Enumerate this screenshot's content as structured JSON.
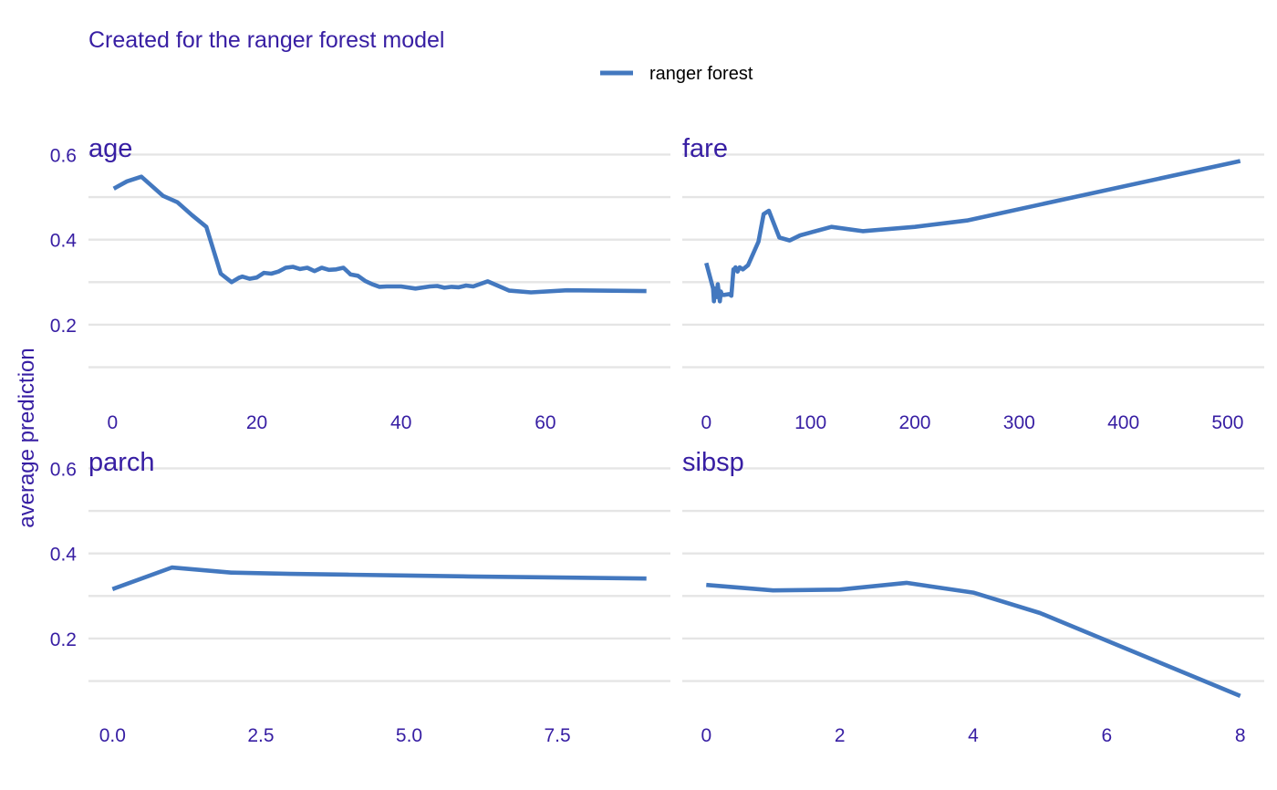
{
  "subtitle": "Created for the ranger forest model",
  "ylabel": "average prediction",
  "chart_data": {
    "type": "line",
    "subtitle": "Created for the ranger forest model",
    "ylabel": "average prediction",
    "legend": {
      "position": "top",
      "entries": [
        {
          "label": "ranger forest",
          "color": "#4378bf"
        }
      ]
    },
    "grid": true,
    "shared_y": {
      "range": [
        0.1,
        0.6
      ],
      "ticks": [
        0.2,
        0.4,
        0.6
      ],
      "tick_labels": [
        "0.2",
        "0.4",
        "0.6"
      ]
    },
    "panels": [
      {
        "title": "age",
        "xlim": [
          0,
          74
        ],
        "x_ticks": [
          0,
          20,
          40,
          60
        ],
        "x_tick_labels": [
          "0",
          "20",
          "40",
          "60"
        ],
        "series": [
          {
            "name": "ranger forest",
            "color": "#4378bf",
            "x": [
              0.17,
              2,
              4,
              7,
              9,
              11,
              13,
              15,
              16.5,
              17.5,
              18,
              19,
              20,
              21,
              22,
              23,
              24,
              25,
              26,
              27,
              28,
              29,
              30,
              31,
              32,
              33,
              34,
              35,
              36,
              37,
              38,
              40,
              42,
              44,
              45,
              46,
              47,
              48,
              49,
              50,
              52,
              55,
              58,
              63,
              74
            ],
            "y": [
              0.52,
              0.537,
              0.548,
              0.503,
              0.488,
              0.458,
              0.43,
              0.32,
              0.3,
              0.31,
              0.313,
              0.308,
              0.311,
              0.322,
              0.32,
              0.325,
              0.334,
              0.336,
              0.331,
              0.334,
              0.326,
              0.334,
              0.329,
              0.33,
              0.334,
              0.318,
              0.315,
              0.303,
              0.295,
              0.289,
              0.29,
              0.29,
              0.285,
              0.29,
              0.291,
              0.287,
              0.289,
              0.288,
              0.292,
              0.29,
              0.302,
              0.28,
              0.276,
              0.281,
              0.279
            ]
          }
        ]
      },
      {
        "title": "fare",
        "xlim": [
          0,
          512
        ],
        "x_ticks": [
          0,
          100,
          200,
          300,
          400,
          500
        ],
        "x_tick_labels": [
          "0",
          "100",
          "200",
          "300",
          "400",
          "500"
        ],
        "series": [
          {
            "name": "ranger forest",
            "color": "#4378bf",
            "x": [
              0,
              6.5,
              7.3,
              8,
              10,
              11,
              13,
              14,
              15,
              17,
              22,
              24,
              26,
              27,
              28,
              30,
              32,
              35,
              40,
              50,
              55,
              60,
              70,
              80,
              90,
              120,
              150,
              200,
              250,
              512
            ],
            "y": [
              0.345,
              0.285,
              0.255,
              0.285,
              0.265,
              0.295,
              0.255,
              0.278,
              0.27,
              0.27,
              0.272,
              0.268,
              0.33,
              0.33,
              0.335,
              0.325,
              0.335,
              0.33,
              0.34,
              0.395,
              0.46,
              0.468,
              0.405,
              0.398,
              0.41,
              0.43,
              0.42,
              0.43,
              0.445,
              0.585
            ]
          }
        ]
      },
      {
        "title": "parch",
        "xlim": [
          0,
          9
        ],
        "x_ticks": [
          0,
          2.5,
          5,
          7.5
        ],
        "x_tick_labels": [
          "0.0",
          "2.5",
          "5.0",
          "7.5"
        ],
        "series": [
          {
            "name": "ranger forest",
            "color": "#4378bf",
            "x": [
              0,
              1,
              2,
              3,
              4,
              5,
              6,
              9
            ],
            "y": [
              0.316,
              0.367,
              0.355,
              0.352,
              0.35,
              0.348,
              0.346,
              0.341
            ]
          }
        ]
      },
      {
        "title": "sibsp",
        "xlim": [
          0,
          8
        ],
        "x_ticks": [
          0,
          2,
          4,
          6,
          8
        ],
        "x_tick_labels": [
          "0",
          "2",
          "4",
          "6",
          "8"
        ],
        "series": [
          {
            "name": "ranger forest",
            "color": "#4378bf",
            "x": [
              0,
              1,
              2,
              3,
              4,
              5,
              8
            ],
            "y": [
              0.326,
              0.313,
              0.315,
              0.331,
              0.308,
              0.26,
              0.065
            ]
          }
        ]
      }
    ]
  }
}
